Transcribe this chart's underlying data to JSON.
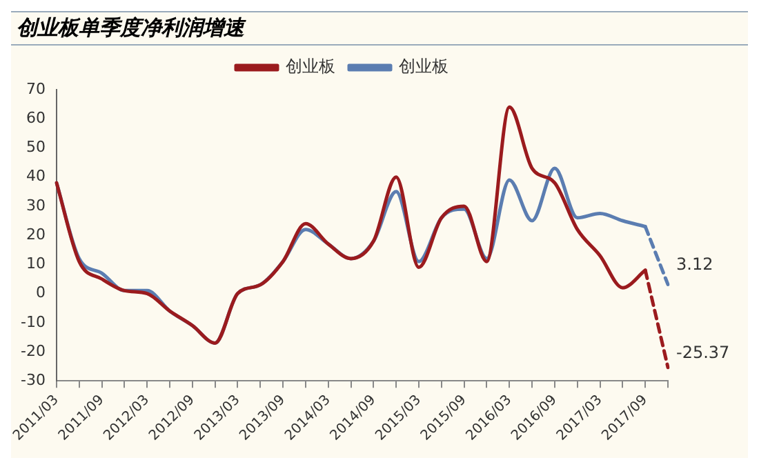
{
  "chart_data": {
    "type": "line",
    "title": "创业板单季度净利润增速",
    "categories": [
      "2011/03",
      null,
      "2011/09",
      null,
      "2012/03",
      null,
      "2012/09",
      null,
      "2013/03",
      null,
      "2013/09",
      null,
      "2014/03",
      null,
      "2014/09",
      null,
      "2015/03",
      null,
      "2015/09",
      null,
      "2016/03",
      null,
      "2016/09",
      null,
      "2017/03",
      null,
      "2017/09",
      null
    ],
    "series": [
      {
        "name": "创业板",
        "color": "#9b1b1e",
        "values": [
          38,
          11,
          5,
          1,
          0,
          -6,
          -11,
          -17,
          0,
          3,
          11,
          24,
          17,
          12,
          18,
          40,
          9,
          26,
          30,
          11,
          64,
          43,
          38,
          22,
          13,
          2,
          8,
          null
        ]
      },
      {
        "name": "创业板",
        "color": "#5b7db1",
        "values": [
          38,
          12,
          7,
          1,
          1,
          -6,
          -11,
          -17,
          0,
          3,
          11,
          22,
          17,
          12,
          18,
          35,
          11,
          26,
          29,
          12,
          39,
          25,
          43,
          26,
          27.5,
          25,
          23,
          null
        ]
      },
      {
        "color": "#9b1b1e",
        "line_style": "dashed",
        "values": [
          null,
          null,
          null,
          null,
          null,
          null,
          null,
          null,
          null,
          null,
          null,
          null,
          null,
          null,
          null,
          null,
          null,
          null,
          null,
          null,
          null,
          null,
          null,
          null,
          null,
          null,
          8,
          -25.37
        ],
        "value_labels": [
          null,
          null,
          null,
          null,
          null,
          null,
          null,
          null,
          null,
          null,
          null,
          null,
          null,
          null,
          null,
          null,
          null,
          null,
          null,
          null,
          null,
          null,
          null,
          null,
          null,
          null,
          null,
          "-25.37"
        ]
      },
      {
        "color": "#5b7db1",
        "line_style": "dashed",
        "values": [
          null,
          null,
          null,
          null,
          null,
          null,
          null,
          null,
          null,
          null,
          null,
          null,
          null,
          null,
          null,
          null,
          null,
          null,
          null,
          null,
          null,
          null,
          null,
          null,
          null,
          null,
          23,
          3.12
        ],
        "value_labels": [
          null,
          null,
          null,
          null,
          null,
          null,
          null,
          null,
          null,
          null,
          null,
          null,
          null,
          null,
          null,
          null,
          null,
          null,
          null,
          null,
          null,
          null,
          null,
          null,
          null,
          null,
          null,
          "3.12"
        ]
      }
    ],
    "ylim": [
      -30,
      70
    ],
    "yticks": [
      -30,
      -20,
      -10,
      0,
      10,
      20,
      30,
      40,
      50,
      60,
      70
    ],
    "grid": false,
    "legend": "top",
    "marker": "none"
  }
}
